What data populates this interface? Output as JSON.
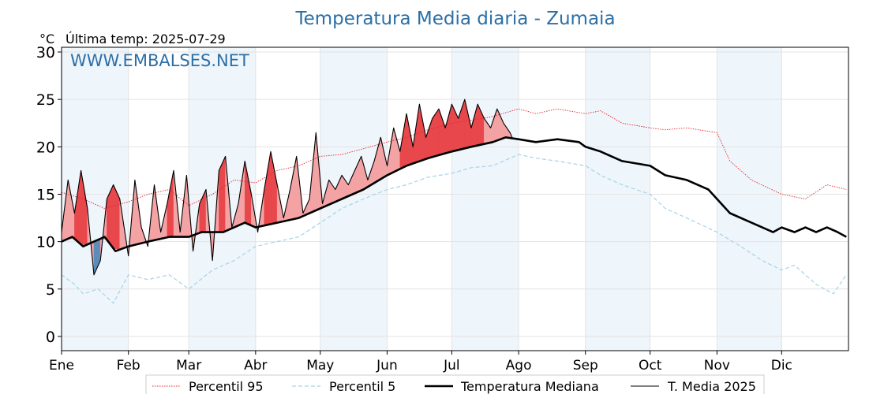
{
  "chart_data": {
    "type": "line",
    "title": "Temperatura Media diaria - Zumaia",
    "unit_label": "°C",
    "subtitle": "Última temp: 2025-07-29",
    "watermark": "WWW.EMBALSES.NET",
    "xlim_days": [
      0,
      365
    ],
    "ylim": [
      -1.5,
      30.5
    ],
    "y_ticks": [
      0,
      5,
      10,
      15,
      20,
      25,
      30
    ],
    "month_labels": [
      "Ene",
      "Feb",
      "Mar",
      "Abr",
      "May",
      "Jun",
      "Jul",
      "Ago",
      "Sep",
      "Oct",
      "Nov",
      "Dic"
    ],
    "month_start_days": [
      0,
      31,
      59,
      90,
      120,
      151,
      181,
      212,
      243,
      273,
      304,
      334
    ],
    "grid": true,
    "legend_position": "bottom",
    "colors": {
      "p95": "#e8272b",
      "p5": "#a6d3e6",
      "median": "#000000",
      "current": "#000000",
      "above_fill": "#f4a3a5",
      "above_fill_strong": "#e8474b",
      "below_fill": "#5b8db8",
      "band": "#eef5fb"
    },
    "series": [
      {
        "name": "Percentil 95",
        "style": "dotted",
        "x": [
          0,
          10,
          20,
          31,
          40,
          50,
          59,
          70,
          80,
          90,
          100,
          110,
          120,
          130,
          140,
          151,
          160,
          170,
          181,
          190,
          200,
          212,
          220,
          230,
          243,
          250,
          260,
          273,
          280,
          290,
          304,
          310,
          320,
          334,
          345,
          355,
          364
        ],
        "values": [
          15.2,
          14.5,
          13.5,
          14.2,
          15.0,
          15.5,
          13.8,
          15.0,
          16.5,
          16.2,
          17.5,
          18.0,
          19.0,
          19.2,
          19.8,
          20.5,
          21.0,
          21.8,
          22.5,
          22.8,
          23.2,
          24.0,
          23.5,
          24.0,
          23.5,
          23.8,
          22.5,
          22.0,
          21.8,
          22.0,
          21.5,
          18.5,
          16.5,
          15.0,
          14.5,
          16.0,
          15.5
        ]
      },
      {
        "name": "Percentil 5",
        "style": "dashed",
        "x": [
          0,
          6,
          10,
          17,
          24,
          31,
          40,
          50,
          59,
          70,
          80,
          90,
          100,
          110,
          120,
          130,
          140,
          151,
          160,
          170,
          181,
          190,
          200,
          212,
          220,
          230,
          243,
          250,
          260,
          273,
          280,
          290,
          304,
          315,
          325,
          334,
          340,
          350,
          358,
          364
        ],
        "values": [
          6.5,
          5.5,
          4.5,
          5.0,
          3.5,
          6.5,
          6.0,
          6.5,
          5.0,
          7.0,
          8.0,
          9.5,
          10.0,
          10.5,
          12.0,
          13.5,
          14.5,
          15.5,
          16.0,
          16.8,
          17.2,
          17.8,
          18.0,
          19.2,
          18.8,
          18.5,
          18.0,
          17.0,
          16.0,
          15.0,
          13.5,
          12.5,
          11.0,
          9.5,
          8.0,
          7.0,
          7.5,
          5.5,
          4.5,
          6.5
        ]
      },
      {
        "name": "Temperatura Mediana",
        "style": "thick",
        "x": [
          0,
          5,
          10,
          15,
          20,
          25,
          31,
          40,
          50,
          59,
          65,
          75,
          85,
          90,
          100,
          110,
          120,
          130,
          140,
          151,
          160,
          170,
          181,
          190,
          200,
          206,
          212,
          220,
          230,
          240,
          243,
          250,
          260,
          273,
          280,
          290,
          300,
          304,
          310,
          320,
          330,
          334,
          340,
          345,
          350,
          355,
          360,
          364
        ],
        "values": [
          10.0,
          10.5,
          9.5,
          10.0,
          10.5,
          9.0,
          9.5,
          10.0,
          10.5,
          10.5,
          11.0,
          11.0,
          12.0,
          11.5,
          12.0,
          12.5,
          13.5,
          14.5,
          15.5,
          17.0,
          18.0,
          18.8,
          19.5,
          20.0,
          20.5,
          21.0,
          20.8,
          20.5,
          20.8,
          20.5,
          20.0,
          19.5,
          18.5,
          18.0,
          17.0,
          16.5,
          15.5,
          14.5,
          13.0,
          12.0,
          11.0,
          11.5,
          11.0,
          11.5,
          11.0,
          11.5,
          11.0,
          10.5
        ]
      },
      {
        "name": "T. Media 2025",
        "style": "thin",
        "x": [
          0,
          3,
          6,
          9,
          12,
          15,
          18,
          21,
          24,
          27,
          31,
          34,
          37,
          40,
          43,
          46,
          49,
          52,
          55,
          58,
          61,
          64,
          67,
          70,
          73,
          76,
          79,
          82,
          85,
          88,
          91,
          94,
          97,
          100,
          103,
          106,
          109,
          112,
          115,
          118,
          121,
          124,
          127,
          130,
          133,
          136,
          139,
          142,
          145,
          148,
          151,
          154,
          157,
          160,
          163,
          166,
          169,
          172,
          175,
          178,
          181,
          184,
          187,
          190,
          193,
          196,
          199,
          202,
          205,
          208,
          209
        ],
        "values": [
          11.0,
          16.5,
          13.0,
          17.5,
          13.5,
          6.5,
          8.0,
          14.5,
          16.0,
          14.5,
          8.5,
          16.5,
          11.5,
          9.5,
          16.0,
          11.0,
          14.0,
          17.5,
          11.0,
          17.0,
          9.0,
          14.0,
          15.5,
          8.0,
          17.5,
          19.0,
          11.5,
          14.0,
          18.5,
          15.0,
          11.0,
          15.5,
          19.5,
          16.0,
          12.5,
          15.5,
          19.0,
          13.0,
          14.5,
          21.5,
          14.0,
          16.5,
          15.5,
          17.0,
          16.0,
          17.5,
          19.0,
          16.5,
          18.5,
          21.0,
          18.0,
          22.0,
          19.5,
          23.5,
          20.0,
          24.5,
          21.0,
          23.0,
          24.0,
          22.0,
          24.5,
          23.0,
          25.0,
          22.0,
          24.5,
          23.0,
          22.0,
          24.0,
          22.5,
          21.5,
          21.0
        ]
      }
    ]
  },
  "legend": [
    {
      "label": "Percentil 95"
    },
    {
      "label": "Percentil 5"
    },
    {
      "label": "Temperatura Mediana"
    },
    {
      "label": "T. Media 2025"
    }
  ]
}
